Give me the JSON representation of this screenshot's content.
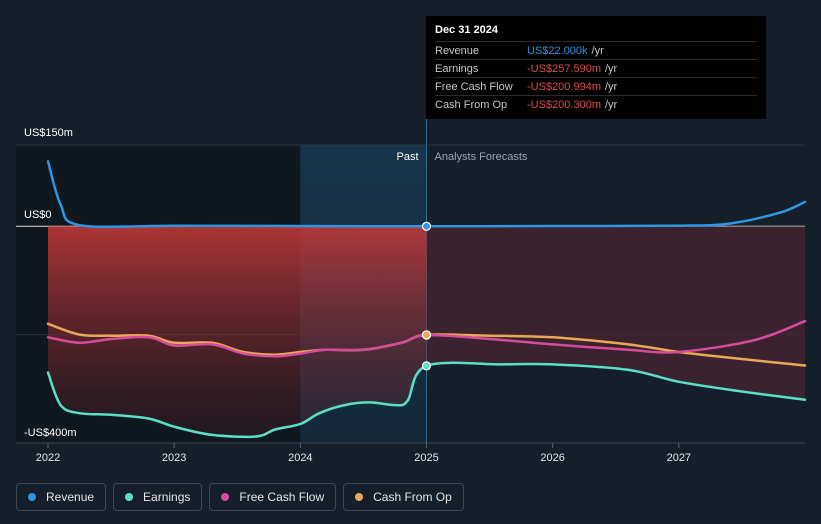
{
  "chart_data": {
    "type": "line",
    "y_axis": {
      "top_label": "US$150m",
      "zero_label": "US$0",
      "bottom_label": "-US$400m",
      "ylim": [
        -400,
        150
      ]
    },
    "x_axis": {
      "ticks": [
        "2022",
        "2023",
        "2024",
        "2025",
        "2026",
        "2027"
      ],
      "xlim": [
        2022.0,
        2028.0
      ]
    },
    "past_label": "Past",
    "forecast_label": "Analysts Forecasts",
    "divider_x": 2025.0,
    "series": [
      {
        "name": "Revenue",
        "color": "#2f96e3",
        "points": [
          [
            2022.0,
            120
          ],
          [
            2022.1,
            40
          ],
          [
            2022.25,
            2
          ],
          [
            2023.0,
            1
          ],
          [
            2024.0,
            0.5
          ],
          [
            2025.0,
            0.022
          ],
          [
            2026.0,
            0.5
          ],
          [
            2027.0,
            1
          ],
          [
            2027.4,
            5
          ],
          [
            2027.8,
            25
          ],
          [
            2028.0,
            45
          ]
        ]
      },
      {
        "name": "Earnings",
        "color": "#59e0c5",
        "points": [
          [
            2022.0,
            -270
          ],
          [
            2022.1,
            -330
          ],
          [
            2022.25,
            -345
          ],
          [
            2022.5,
            -348
          ],
          [
            2022.8,
            -355
          ],
          [
            2023.0,
            -370
          ],
          [
            2023.3,
            -385
          ],
          [
            2023.65,
            -388
          ],
          [
            2023.8,
            -375
          ],
          [
            2024.0,
            -365
          ],
          [
            2024.15,
            -345
          ],
          [
            2024.35,
            -330
          ],
          [
            2024.55,
            -325
          ],
          [
            2024.75,
            -330
          ],
          [
            2024.85,
            -322
          ],
          [
            2025.0,
            -257.59
          ],
          [
            2025.6,
            -255
          ],
          [
            2026.0,
            -255
          ],
          [
            2026.6,
            -265
          ],
          [
            2027.0,
            -287
          ],
          [
            2027.5,
            -305
          ],
          [
            2028.0,
            -320
          ]
        ]
      },
      {
        "name": "Free Cash Flow",
        "color": "#d64b9c",
        "points": [
          [
            2022.0,
            -205
          ],
          [
            2022.25,
            -215
          ],
          [
            2022.5,
            -208
          ],
          [
            2022.8,
            -205
          ],
          [
            2023.0,
            -220
          ],
          [
            2023.3,
            -218
          ],
          [
            2023.55,
            -235
          ],
          [
            2023.8,
            -240
          ],
          [
            2024.0,
            -235
          ],
          [
            2024.2,
            -228
          ],
          [
            2024.5,
            -228
          ],
          [
            2024.8,
            -215
          ],
          [
            2025.0,
            -200.994
          ],
          [
            2025.5,
            -208
          ],
          [
            2026.0,
            -218
          ],
          [
            2026.6,
            -228
          ],
          [
            2027.0,
            -232
          ],
          [
            2027.6,
            -210
          ],
          [
            2028.0,
            -175
          ]
        ]
      },
      {
        "name": "Cash From Op",
        "color": "#e8a856",
        "points": [
          [
            2022.0,
            -180
          ],
          [
            2022.25,
            -200
          ],
          [
            2022.5,
            -202
          ],
          [
            2022.8,
            -202
          ],
          [
            2023.0,
            -215
          ],
          [
            2023.3,
            -215
          ],
          [
            2023.55,
            -232
          ],
          [
            2023.8,
            -237
          ],
          [
            2024.0,
            -232
          ],
          [
            2024.2,
            -228
          ],
          [
            2024.5,
            -228
          ],
          [
            2024.8,
            -215
          ],
          [
            2025.0,
            -200.3
          ],
          [
            2025.5,
            -202
          ],
          [
            2026.0,
            -205
          ],
          [
            2026.6,
            -218
          ],
          [
            2027.0,
            -232
          ],
          [
            2027.5,
            -245
          ],
          [
            2028.0,
            -257
          ]
        ]
      }
    ]
  },
  "tooltip": {
    "title": "Dec 31 2024",
    "rows": [
      {
        "label": "Revenue",
        "value": "US$22.000k",
        "unit": "/yr",
        "color": "#2f96e3"
      },
      {
        "label": "Earnings",
        "value": "-US$257.590m",
        "unit": "/yr",
        "color": "#e24b4b"
      },
      {
        "label": "Free Cash Flow",
        "value": "-US$200.994m",
        "unit": "/yr",
        "color": "#e24b4b"
      },
      {
        "label": "Cash From Op",
        "value": "-US$200.300m",
        "unit": "/yr",
        "color": "#e24b4b"
      }
    ]
  },
  "legend": [
    {
      "label": "Revenue",
      "color": "#2f96e3"
    },
    {
      "label": "Earnings",
      "color": "#59e0c5"
    },
    {
      "label": "Free Cash Flow",
      "color": "#d64b9c"
    },
    {
      "label": "Cash From Op",
      "color": "#e8a856"
    }
  ]
}
